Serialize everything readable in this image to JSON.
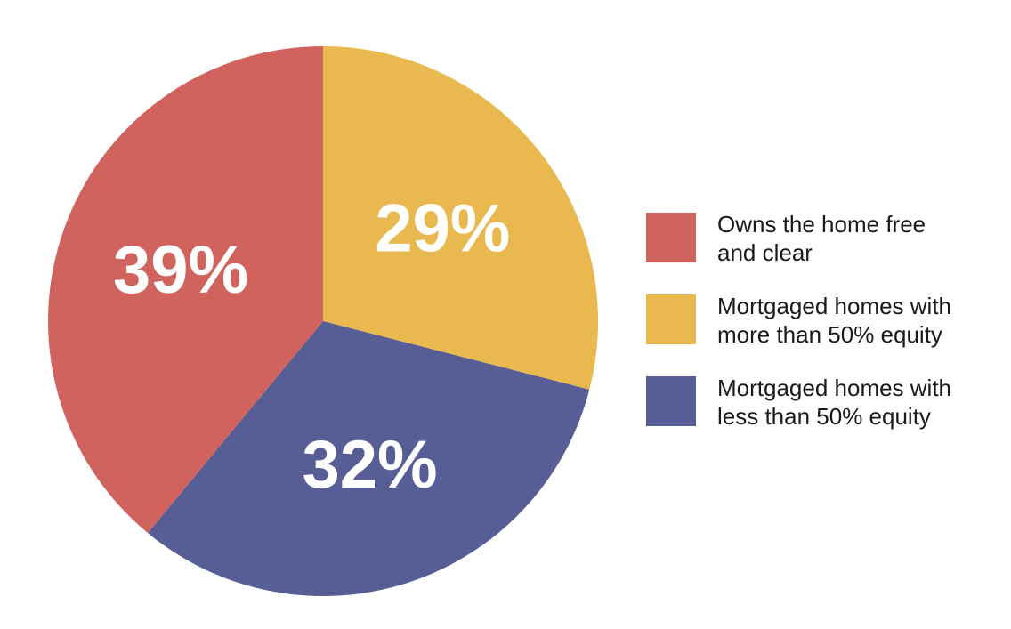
{
  "chart_data": {
    "type": "pie",
    "title": "",
    "slices": [
      {
        "label": "Owns the home free and clear",
        "value": 39,
        "display": "39%",
        "color": "#D0635E"
      },
      {
        "label": "Mortgaged homes with more than 50% equity",
        "value": 29,
        "display": "29%",
        "color": "#E9B84E"
      },
      {
        "label": "Mortgaged homes with less than 50% equity",
        "value": 32,
        "display": "32%",
        "color": "#575E95"
      }
    ],
    "legend": {
      "position": "right",
      "items": [
        {
          "label_lines": [
            "Owns the home free",
            "and clear"
          ],
          "color": "#D0635E"
        },
        {
          "label_lines": [
            "Mortgaged homes with",
            "more than 50% equity"
          ],
          "color": "#E9B84E"
        },
        {
          "label_lines": [
            "Mortgaged homes with",
            "less than 50% equity"
          ],
          "color": "#575E95"
        }
      ]
    },
    "data_label_color": "#FFFFFF"
  }
}
